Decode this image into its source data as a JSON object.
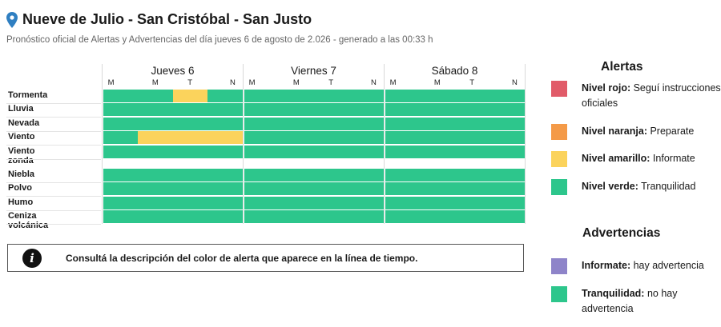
{
  "header": {
    "title": "Nueve de Julio - San Cristóbal - San Justo",
    "subtitle": "Pronóstico oficial de Alertas y Advertencias del día jueves 6 de agosto de 2.026 - generado a las 00:33 h",
    "pin_color": "#2f7fc1"
  },
  "colors": {
    "green": "#2dc68c",
    "yellow": "#fbd35c",
    "red": "#e15b69",
    "orange": "#f49a48",
    "purple": "#8e84c9"
  },
  "timeline": {
    "days": [
      {
        "label": "Jueves 6",
        "slots": [
          "M",
          "M",
          "T",
          "N"
        ]
      },
      {
        "label": "Viernes 7",
        "slots": [
          "M",
          "M",
          "T",
          "N"
        ]
      },
      {
        "label": "Sábado 8",
        "slots": [
          "M",
          "M",
          "T",
          "N"
        ]
      }
    ],
    "alert_rows": [
      {
        "label": "Tormenta",
        "levels": [
          "green",
          "green",
          "yellow",
          "green",
          "green",
          "green",
          "green",
          "green",
          "green",
          "green",
          "green",
          "green"
        ]
      },
      {
        "label": "Lluvia",
        "levels": [
          "green",
          "green",
          "green",
          "green",
          "green",
          "green",
          "green",
          "green",
          "green",
          "green",
          "green",
          "green"
        ]
      },
      {
        "label": "Nevada",
        "levels": [
          "green",
          "green",
          "green",
          "green",
          "green",
          "green",
          "green",
          "green",
          "green",
          "green",
          "green",
          "green"
        ]
      },
      {
        "label": "Viento",
        "levels": [
          "green",
          "yellow",
          "yellow",
          "yellow",
          "green",
          "green",
          "green",
          "green",
          "green",
          "green",
          "green",
          "green"
        ]
      },
      {
        "label": "Viento zonda",
        "levels": [
          "green",
          "green",
          "green",
          "green",
          "green",
          "green",
          "green",
          "green",
          "green",
          "green",
          "green",
          "green"
        ]
      }
    ],
    "warning_rows": [
      {
        "label": "Niebla",
        "levels": [
          "green",
          "green",
          "green",
          "green",
          "green",
          "green",
          "green",
          "green",
          "green",
          "green",
          "green",
          "green"
        ]
      },
      {
        "label": "Polvo",
        "levels": [
          "green",
          "green",
          "green",
          "green",
          "green",
          "green",
          "green",
          "green",
          "green",
          "green",
          "green",
          "green"
        ]
      },
      {
        "label": "Humo",
        "levels": [
          "green",
          "green",
          "green",
          "green",
          "green",
          "green",
          "green",
          "green",
          "green",
          "green",
          "green",
          "green"
        ]
      },
      {
        "label": "Ceniza volcánica",
        "levels": [
          "green",
          "green",
          "green",
          "green",
          "green",
          "green",
          "green",
          "green",
          "green",
          "green",
          "green",
          "green"
        ]
      }
    ]
  },
  "info": {
    "icon": "info-icon",
    "text": "Consultá la descripción del color de alerta que aparece en la línea de tiempo."
  },
  "legend": {
    "alerts_title": "Alertas",
    "alerts": [
      {
        "color": "red",
        "bold": "Nivel rojo:",
        "text": " Seguí instrucciones oficiales"
      },
      {
        "color": "orange",
        "bold": "Nivel naranja:",
        "text": " Preparate"
      },
      {
        "color": "yellow",
        "bold": "Nivel amarillo:",
        "text": " Informate"
      },
      {
        "color": "green",
        "bold": "Nivel verde:",
        "text": " Tranquilidad"
      }
    ],
    "warnings_title": "Advertencias",
    "warnings": [
      {
        "color": "purple",
        "bold": "Informate:",
        "text": " hay advertencia"
      },
      {
        "color": "green",
        "bold": "Tranquilidad:",
        "text": " no hay advertencia"
      }
    ]
  }
}
